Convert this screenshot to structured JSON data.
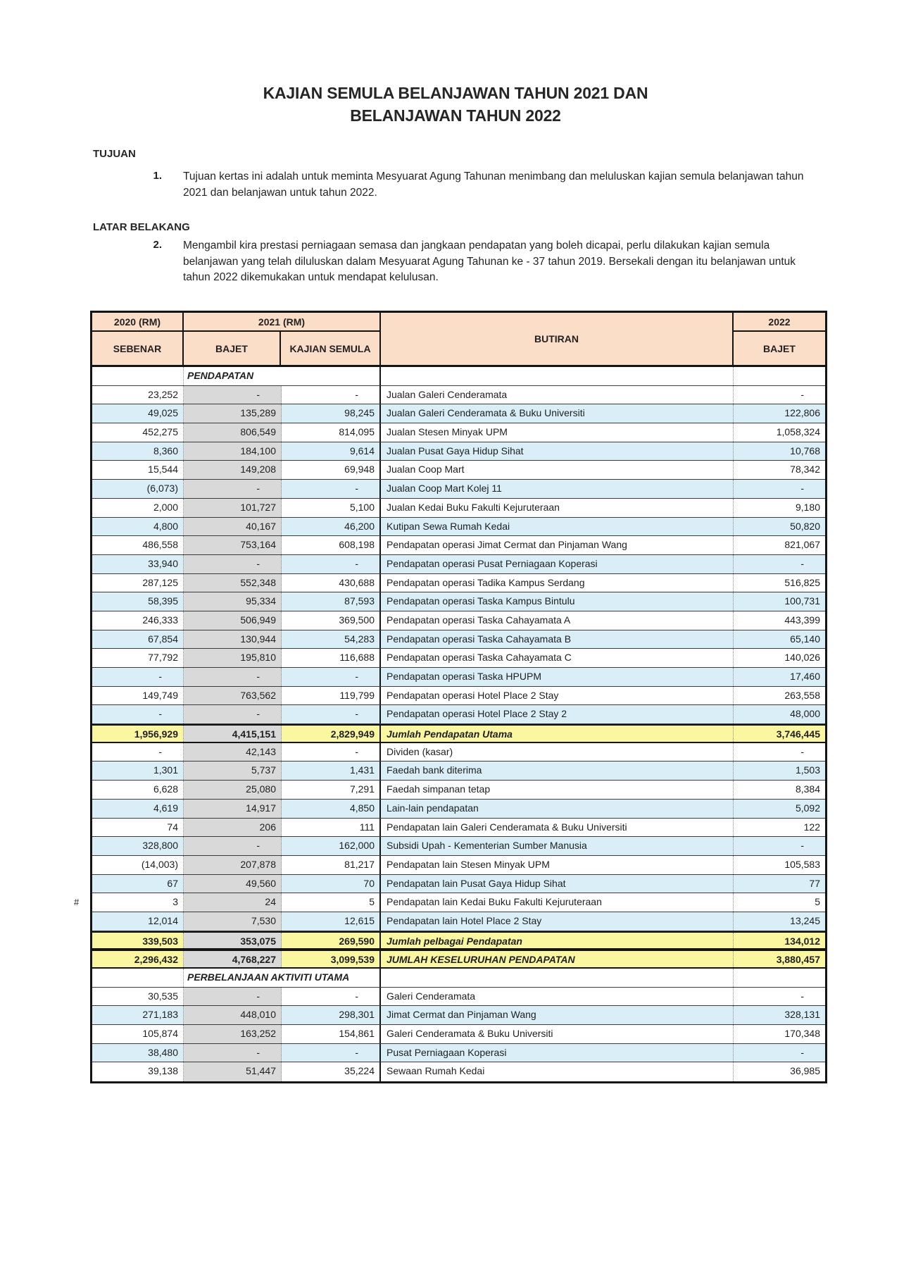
{
  "colors": {
    "header_bg": "#FBDEC8",
    "row_alt_blue": "#D9EEF7",
    "total_yellow": "#FAF7A0",
    "bajet_col_gray": "#D9D9D9",
    "border_black": "#141414"
  },
  "page": {
    "title_line1": "KAJIAN SEMULA BELANJAWAN TAHUN 2021 DAN",
    "title_line2": "BELANJAWAN TAHUN 2022",
    "sections": [
      {
        "heading": "TUJUAN",
        "number": "1.",
        "text": "Tujuan kertas ini adalah untuk meminta Mesyuarat Agung Tahunan menimbang dan meluluskan kajian semula belanjawan tahun 2021 dan belanjawan untuk tahun 2022."
      },
      {
        "heading": "LATAR BELAKANG",
        "number": "2.",
        "text": "Mengambil kira prestasi perniagaan semasa dan jangkaan pendapatan yang boleh dicapai, perlu dilakukan kajian semula belanjawan yang telah diluluskan dalam Mesyuarat Agung Tahunan ke - 37 tahun 2019. Bersekali dengan itu belanjawan untuk tahun 2022 dikemukakan untuk mendapat kelulusan."
      }
    ]
  },
  "table": {
    "header": {
      "col_2020": "2020 (RM)",
      "col_2021": "2021 (RM)",
      "col_butiran": "BUTIRAN",
      "col_2022": "2022",
      "sub_sebenar": "SEBENAR",
      "sub_bajet": "BAJET",
      "sub_kajian": "KAJIAN SEMULA",
      "sub_bajet_2022": "BAJET"
    },
    "rows": [
      {
        "type": "section",
        "label": "PENDAPATAN"
      },
      {
        "type": "data",
        "sebenar": "23,252",
        "bajet": "-",
        "kajian": "-",
        "butiran": "Jualan Galeri Cenderamata",
        "bajet2022": "-"
      },
      {
        "type": "data",
        "sebenar": "49,025",
        "bajet": "135,289",
        "kajian": "98,245",
        "butiran": "Jualan Galeri Cenderamata & Buku Universiti",
        "bajet2022": "122,806"
      },
      {
        "type": "data",
        "sebenar": "452,275",
        "bajet": "806,549",
        "kajian": "814,095",
        "butiran": "Jualan Stesen Minyak UPM",
        "bajet2022": "1,058,324"
      },
      {
        "type": "data",
        "sebenar": "8,360",
        "bajet": "184,100",
        "kajian": "9,614",
        "butiran": "Jualan Pusat Gaya Hidup Sihat",
        "bajet2022": "10,768"
      },
      {
        "type": "data",
        "sebenar": "15,544",
        "bajet": "149,208",
        "kajian": "69,948",
        "butiran": "Jualan Coop Mart",
        "bajet2022": "78,342"
      },
      {
        "type": "data",
        "sebenar": "(6,073)",
        "bajet": "-",
        "kajian": "-",
        "butiran": "Jualan Coop Mart Kolej 11",
        "bajet2022": "-"
      },
      {
        "type": "data",
        "sebenar": "2,000",
        "bajet": "101,727",
        "kajian": "5,100",
        "butiran": "Jualan Kedai Buku Fakulti Kejuruteraan",
        "bajet2022": "9,180"
      },
      {
        "type": "data",
        "sebenar": "4,800",
        "bajet": "40,167",
        "kajian": "46,200",
        "butiran": "Kutipan Sewa Rumah Kedai",
        "bajet2022": "50,820"
      },
      {
        "type": "data",
        "sebenar": "486,558",
        "bajet": "753,164",
        "kajian": "608,198",
        "butiran": "Pendapatan operasi Jimat Cermat dan Pinjaman Wang",
        "bajet2022": "821,067"
      },
      {
        "type": "data",
        "sebenar": "33,940",
        "bajet": "-",
        "kajian": "-",
        "butiran": "Pendapatan operasi Pusat Perniagaan Koperasi",
        "bajet2022": "-"
      },
      {
        "type": "data",
        "sebenar": "287,125",
        "bajet": "552,348",
        "kajian": "430,688",
        "butiran": "Pendapatan operasi Tadika Kampus Serdang",
        "bajet2022": "516,825"
      },
      {
        "type": "data",
        "sebenar": "58,395",
        "bajet": "95,334",
        "kajian": "87,593",
        "butiran": "Pendapatan operasi Taska Kampus Bintulu",
        "bajet2022": "100,731"
      },
      {
        "type": "data",
        "sebenar": "246,333",
        "bajet": "506,949",
        "kajian": "369,500",
        "butiran": "Pendapatan operasi Taska Cahayamata A",
        "bajet2022": "443,399"
      },
      {
        "type": "data",
        "sebenar": "67,854",
        "bajet": "130,944",
        "kajian": "54,283",
        "butiran": "Pendapatan operasi Taska Cahayamata B",
        "bajet2022": "65,140"
      },
      {
        "type": "data",
        "sebenar": "77,792",
        "bajet": "195,810",
        "kajian": "116,688",
        "butiran": "Pendapatan operasi Taska Cahayamata C",
        "bajet2022": "140,026"
      },
      {
        "type": "data",
        "sebenar": "-",
        "bajet": "-",
        "kajian": "-",
        "butiran": "Pendapatan operasi Taska HPUPM",
        "bajet2022": "17,460"
      },
      {
        "type": "data",
        "sebenar": "149,749",
        "bajet": "763,562",
        "kajian": "119,799",
        "butiran": "Pendapatan operasi Hotel Place 2 Stay",
        "bajet2022": "263,558"
      },
      {
        "type": "data",
        "sebenar": "-",
        "bajet": "-",
        "kajian": "-",
        "butiran": "Pendapatan operasi Hotel Place 2 Stay 2",
        "bajet2022": "48,000"
      },
      {
        "type": "total",
        "sebenar": "1,956,929",
        "bajet": "4,415,151",
        "kajian": "2,829,949",
        "butiran": "Jumlah Pendapatan Utama",
        "bajet2022": "3,746,445"
      },
      {
        "type": "data",
        "sebenar": "-",
        "bajet": "42,143",
        "kajian": "-",
        "butiran": "Dividen (kasar)",
        "bajet2022": "-"
      },
      {
        "type": "data",
        "sebenar": "1,301",
        "bajet": "5,737",
        "kajian": "1,431",
        "butiran": "Faedah bank diterima",
        "bajet2022": "1,503"
      },
      {
        "type": "data",
        "sebenar": "6,628",
        "bajet": "25,080",
        "kajian": "7,291",
        "butiran": "Faedah simpanan tetap",
        "bajet2022": "8,384"
      },
      {
        "type": "data",
        "sebenar": "4,619",
        "bajet": "14,917",
        "kajian": "4,850",
        "butiran": "Lain-lain pendapatan",
        "bajet2022": "5,092"
      },
      {
        "type": "data",
        "sebenar": "74",
        "bajet": "206",
        "kajian": "111",
        "butiran": "Pendapatan lain Galeri Cenderamata & Buku Universiti",
        "bajet2022": "122"
      },
      {
        "type": "data",
        "sebenar": "328,800",
        "bajet": "-",
        "kajian": "162,000",
        "butiran": "Subsidi Upah - Kementerian Sumber Manusia",
        "bajet2022": "-"
      },
      {
        "type": "data",
        "sebenar": "(14,003)",
        "bajet": "207,878",
        "kajian": "81,217",
        "butiran": "Pendapatan lain Stesen Minyak UPM",
        "bajet2022": "105,583"
      },
      {
        "type": "data",
        "sebenar": "67",
        "bajet": "49,560",
        "kajian": "70",
        "butiran": "Pendapatan lain Pusat Gaya Hidup Sihat",
        "bajet2022": "77"
      },
      {
        "type": "data",
        "marker": "#",
        "sebenar": "3",
        "bajet": "24",
        "kajian": "5",
        "butiran": "Pendapatan lain Kedai Buku Fakulti Kejuruteraan",
        "bajet2022": "5"
      },
      {
        "type": "data",
        "sebenar": "12,014",
        "bajet": "7,530",
        "kajian": "12,615",
        "butiran": "Pendapatan lain Hotel Place 2 Stay",
        "bajet2022": "13,245"
      },
      {
        "type": "total",
        "sebenar": "339,503",
        "bajet": "353,075",
        "kajian": "269,590",
        "butiran": "Jumlah pelbagai Pendapatan",
        "bajet2022": "134,012"
      },
      {
        "type": "total",
        "sebenar": "2,296,432",
        "bajet": "4,768,227",
        "kajian": "3,099,539",
        "butiran": "JUMLAH KESELURUHAN PENDAPATAN",
        "bajet2022": "3,880,457"
      },
      {
        "type": "section",
        "label": "PERBELANJAAN AKTIVITI UTAMA"
      },
      {
        "type": "data",
        "sebenar": "30,535",
        "bajet": "-",
        "kajian": "-",
        "butiran": "Galeri Cenderamata",
        "bajet2022": "-"
      },
      {
        "type": "data",
        "sebenar": "271,183",
        "bajet": "448,010",
        "kajian": "298,301",
        "butiran": "Jimat Cermat dan Pinjaman Wang",
        "bajet2022": "328,131"
      },
      {
        "type": "data",
        "sebenar": "105,874",
        "bajet": "163,252",
        "kajian": "154,861",
        "butiran": "Galeri Cenderamata & Buku Universiti",
        "bajet2022": "170,348"
      },
      {
        "type": "data",
        "sebenar": "38,480",
        "bajet": "-",
        "kajian": "-",
        "butiran": "Pusat Perniagaan Koperasi",
        "bajet2022": "-"
      },
      {
        "type": "data",
        "sebenar": "39,138",
        "bajet": "51,447",
        "kajian": "35,224",
        "butiran": "Sewaan Rumah Kedai",
        "bajet2022": "36,985"
      }
    ]
  }
}
